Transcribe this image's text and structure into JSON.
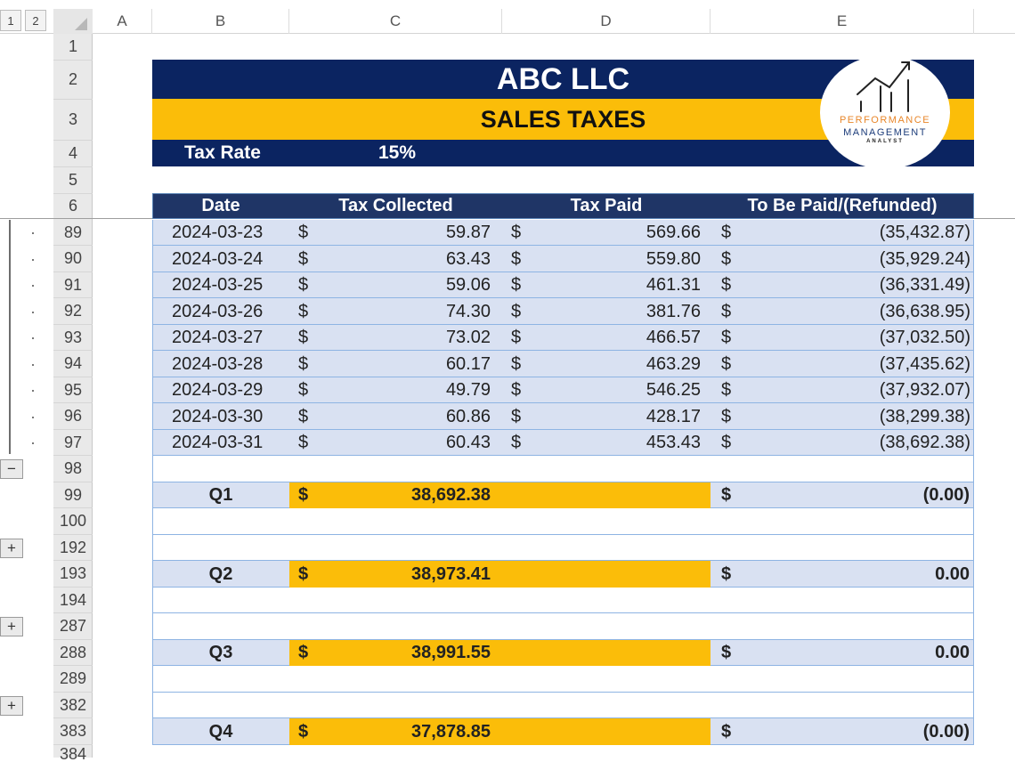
{
  "outline_levels": [
    "1",
    "2"
  ],
  "columns": [
    "A",
    "B",
    "C",
    "D",
    "E"
  ],
  "header_rows": [
    "1",
    "2",
    "3",
    "4",
    "5",
    "6"
  ],
  "title": "ABC LLC",
  "subtitle": "SALES TAXES",
  "tax_rate_label": "Tax Rate",
  "tax_rate_value": "15%",
  "logo": {
    "line1": "PERFORMANCE",
    "line2": "MANAGEMENT",
    "line3": "ANALYST"
  },
  "table_headers": [
    "Date",
    "Tax Collected",
    "Tax Paid",
    "To Be Paid/(Refunded)"
  ],
  "currency": "$",
  "rows": [
    {
      "row": "89",
      "date": "2024-03-23",
      "collected": "59.87",
      "paid": "569.66",
      "balance": "(35,432.87)"
    },
    {
      "row": "90",
      "date": "2024-03-24",
      "collected": "63.43",
      "paid": "559.80",
      "balance": "(35,929.24)"
    },
    {
      "row": "91",
      "date": "2024-03-25",
      "collected": "59.06",
      "paid": "461.31",
      "balance": "(36,331.49)"
    },
    {
      "row": "92",
      "date": "2024-03-26",
      "collected": "74.30",
      "paid": "381.76",
      "balance": "(36,638.95)"
    },
    {
      "row": "93",
      "date": "2024-03-27",
      "collected": "73.02",
      "paid": "466.57",
      "balance": "(37,032.50)"
    },
    {
      "row": "94",
      "date": "2024-03-28",
      "collected": "60.17",
      "paid": "463.29",
      "balance": "(37,435.62)"
    },
    {
      "row": "95",
      "date": "2024-03-29",
      "collected": "49.79",
      "paid": "546.25",
      "balance": "(37,932.07)"
    },
    {
      "row": "96",
      "date": "2024-03-30",
      "collected": "60.86",
      "paid": "428.17",
      "balance": "(38,299.38)"
    },
    {
      "row": "97",
      "date": "2024-03-31",
      "collected": "60.43",
      "paid": "453.43",
      "balance": "(38,692.38)"
    }
  ],
  "lower_rows": [
    "98",
    "99",
    "100",
    "192",
    "193",
    "194",
    "287",
    "288",
    "289",
    "382",
    "383",
    "384"
  ],
  "quarters": [
    {
      "label": "Q1",
      "total": "38,692.38",
      "balance": "(0.00)"
    },
    {
      "label": "Q2",
      "total": "38,973.41",
      "balance": "0.00"
    },
    {
      "label": "Q3",
      "total": "38,991.55",
      "balance": "0.00"
    },
    {
      "label": "Q4",
      "total": "37,878.85",
      "balance": "(0.00)"
    }
  ],
  "outline_buttons": {
    "collapse": "−",
    "expand": "+"
  },
  "colors": {
    "navy": "#0b2461",
    "gold": "#fbbd09",
    "row_fill": "#d9e1f2",
    "header_fill": "#1f3566"
  }
}
